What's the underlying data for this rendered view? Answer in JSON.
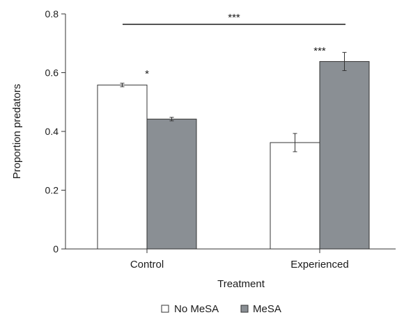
{
  "chart_data": {
    "type": "bar",
    "xlabel": "Treatment",
    "ylabel": "Proportion predators",
    "ylim": [
      0,
      0.8
    ],
    "yticks": [
      0,
      0.2,
      0.4,
      0.6,
      0.8
    ],
    "ytick_labels": [
      "0",
      "0.2",
      "0.4",
      "0.6",
      "0.8"
    ],
    "categories": [
      "Control",
      "Experienced"
    ],
    "series": [
      {
        "name": "No MeSA",
        "values": [
          0.558,
          0.362
        ],
        "errors": [
          0.006,
          0.031
        ],
        "color": "#ffffff"
      },
      {
        "name": "MeSA",
        "values": [
          0.442,
          0.638
        ],
        "errors": [
          0.006,
          0.031
        ],
        "color": "#8a8f94"
      }
    ],
    "annotations": {
      "control_sig": "*",
      "experienced_sig": "***",
      "between_groups_sig": "***"
    },
    "legend_position": "bottom-center",
    "grid": false
  }
}
